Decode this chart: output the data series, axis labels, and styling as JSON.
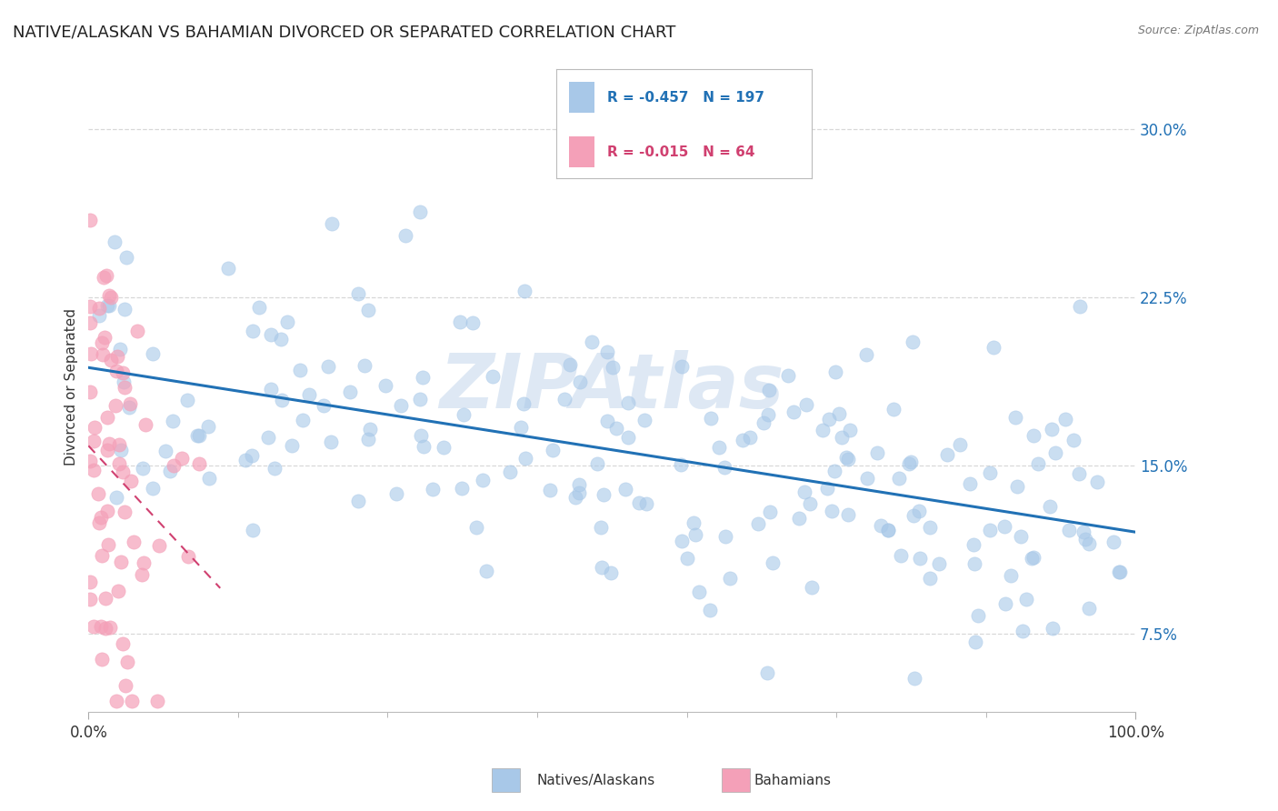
{
  "title": "NATIVE/ALASKAN VS BAHAMIAN DIVORCED OR SEPARATED CORRELATION CHART",
  "source": "Source: ZipAtlas.com",
  "ylabel": "Divorced or Separated",
  "ytick_labels": [
    "7.5%",
    "15.0%",
    "22.5%",
    "30.0%"
  ],
  "ytick_vals": [
    0.075,
    0.15,
    0.225,
    0.3
  ],
  "xtick_labels": [
    "0.0%",
    "100.0%"
  ],
  "xtick_vals": [
    0.0,
    1.0
  ],
  "xlim": [
    0.0,
    1.0
  ],
  "ylim": [
    0.04,
    0.33
  ],
  "legend_r1": "-0.457",
  "legend_n1": "197",
  "legend_r2": "-0.015",
  "legend_n2": "64",
  "color_blue": "#a8c8e8",
  "color_blue_line": "#2171b5",
  "color_pink": "#f4a0b8",
  "color_pink_line": "#d04070",
  "watermark": "ZIPAtlas",
  "watermark_color": "#d0dff0",
  "native_r": -0.457,
  "native_n": 197,
  "bahamian_r": -0.015,
  "bahamian_n": 64,
  "background_color": "#ffffff",
  "grid_color": "#d8d8d8",
  "legend_label_blue": "Natives/Alaskans",
  "legend_label_pink": "Bahamians"
}
